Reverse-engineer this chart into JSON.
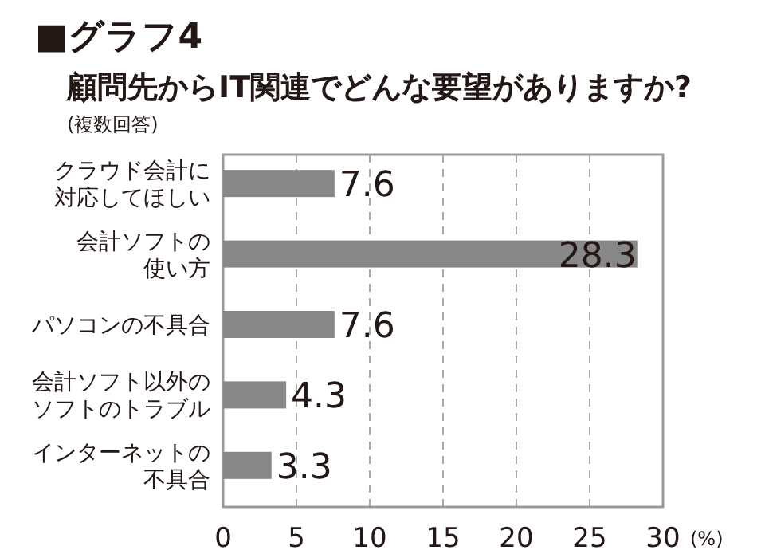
{
  "chart_data": {
    "type": "bar",
    "orientation": "horizontal",
    "title": "■グラフ4",
    "subtitle": "顧問先からIT関連でどんな要望がありますか?",
    "annotations": [
      "(複数回答)"
    ],
    "xlabel": "(%)",
    "categories": [
      "クラウド会計に対応してほしい",
      "会計ソフトの使い方",
      "パソコンの不具合",
      "会計ソフト以外のソフトのトラブル",
      "インターネットの不具合"
    ],
    "values": [
      7.6,
      28.3,
      7.6,
      4.3,
      3.3
    ],
    "color": "#888888",
    "data_labels": true,
    "grid": "x",
    "xlim": [
      0,
      30
    ],
    "xticks": [
      0,
      5,
      10,
      15,
      20,
      25,
      30
    ]
  }
}
